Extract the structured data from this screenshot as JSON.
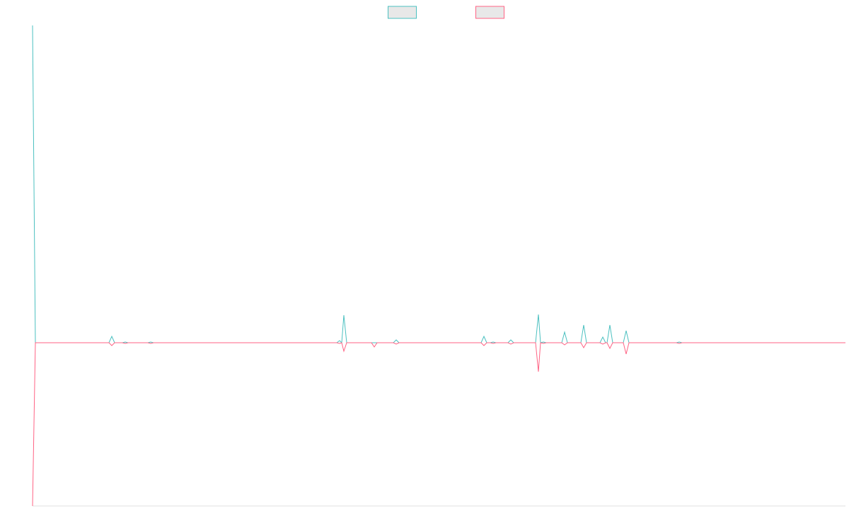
{
  "chart_data": {
    "type": "line",
    "legend": "top",
    "grid": false,
    "xlim": [
      0,
      1149
    ],
    "ylim": [
      -231,
      449
    ],
    "x": [
      0,
      4,
      108,
      112,
      116,
      127,
      131,
      135,
      163,
      167,
      171,
      430,
      434,
      437,
      440,
      444,
      479,
      483,
      487,
      510,
      514,
      518,
      634,
      638,
      642,
      647,
      651,
      655,
      672,
      676,
      680,
      711,
      715,
      718,
      722,
      726,
      748,
      752,
      756,
      775,
      779,
      783,
      802,
      806,
      810,
      812,
      816,
      820,
      835,
      839,
      843,
      910,
      914,
      918,
      1149
    ],
    "series": [
      {
        "color": "#4bc0c0",
        "values": [
          449,
          0,
          0,
          9,
          0,
          0,
          1,
          0,
          0,
          1,
          0,
          0,
          3,
          0,
          39,
          0,
          0,
          0,
          0,
          0,
          4,
          0,
          0,
          9,
          0,
          0,
          1,
          0,
          0,
          4,
          0,
          0,
          40,
          0,
          1,
          0,
          0,
          15,
          0,
          0,
          25,
          0,
          0,
          8,
          0,
          0,
          25,
          0,
          0,
          17,
          0,
          0,
          1,
          0,
          0
        ]
      },
      {
        "color": "#ff6384",
        "values": [
          -231,
          0,
          0,
          -4,
          0,
          0,
          -1,
          0,
          0,
          -1,
          0,
          0,
          -1,
          0,
          -12,
          0,
          0,
          -6,
          0,
          0,
          -2,
          0,
          0,
          -4,
          0,
          0,
          -1,
          0,
          0,
          -2,
          0,
          0,
          -41,
          0,
          -1,
          0,
          0,
          -3,
          0,
          0,
          -7,
          0,
          0,
          -2,
          0,
          0,
          -8,
          0,
          0,
          -16,
          0,
          0,
          -1,
          0,
          0
        ]
      }
    ]
  }
}
